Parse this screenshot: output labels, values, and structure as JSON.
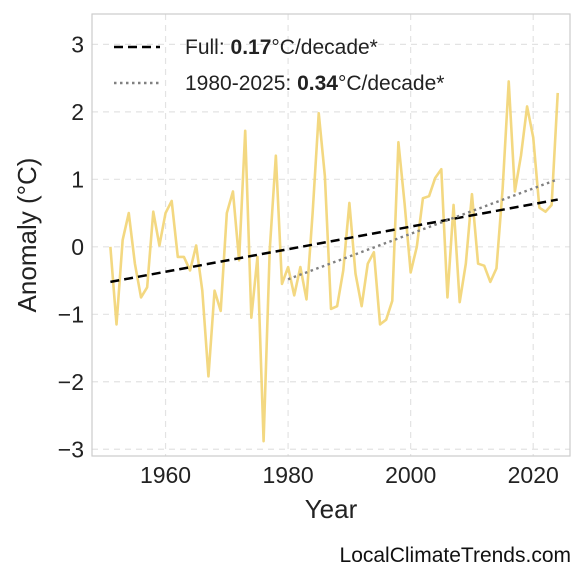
{
  "chart_data": {
    "type": "line",
    "xlabel": "Year",
    "ylabel": "Anomaly (°C)",
    "xlim": [
      1948,
      2026
    ],
    "ylim": [
      -3.1,
      3.45
    ],
    "xticks": [
      1960,
      1980,
      2000,
      2020
    ],
    "yticks": [
      -3,
      -2,
      -1,
      0,
      1,
      2,
      3
    ],
    "ytick_labels": [
      "−3",
      "−2",
      "−1",
      "0",
      "1",
      "2",
      "3"
    ],
    "grid": true,
    "legend_position": "top-left",
    "series": [
      {
        "kind": "anomaly",
        "color": "#f2d67a",
        "x": [
          1951,
          1952,
          1953,
          1954,
          1955,
          1956,
          1957,
          1958,
          1959,
          1960,
          1961,
          1962,
          1963,
          1964,
          1965,
          1966,
          1967,
          1968,
          1969,
          1970,
          1971,
          1972,
          1973,
          1974,
          1975,
          1976,
          1977,
          1978,
          1979,
          1980,
          1981,
          1982,
          1983,
          1984,
          1985,
          1986,
          1987,
          1988,
          1989,
          1990,
          1991,
          1992,
          1993,
          1994,
          1995,
          1996,
          1997,
          1998,
          1999,
          2000,
          2001,
          2002,
          2003,
          2004,
          2005,
          2006,
          2007,
          2008,
          2009,
          2010,
          2011,
          2012,
          2013,
          2014,
          2015,
          2016,
          2017,
          2018,
          2019,
          2020,
          2021,
          2022,
          2023,
          2024
        ],
        "values": [
          0.0,
          -1.15,
          0.1,
          0.5,
          -0.25,
          -0.75,
          -0.6,
          0.52,
          0.02,
          0.5,
          0.68,
          -0.15,
          -0.15,
          -0.35,
          0.02,
          -0.65,
          -1.92,
          -0.65,
          -0.95,
          0.5,
          0.82,
          -0.2,
          1.72,
          -1.05,
          -0.15,
          -2.88,
          -0.05,
          1.35,
          -0.55,
          -0.3,
          -0.72,
          -0.3,
          -0.78,
          0.5,
          1.98,
          1.05,
          -0.92,
          -0.88,
          -0.35,
          0.65,
          -0.4,
          -0.88,
          -0.25,
          -0.08,
          -1.15,
          -1.08,
          -0.8,
          1.55,
          0.65,
          -0.38,
          0.0,
          0.72,
          0.75,
          1.02,
          1.15,
          -0.75,
          0.62,
          -0.82,
          -0.25,
          0.78,
          -0.25,
          -0.28,
          -0.52,
          -0.32,
          0.85,
          2.45,
          0.82,
          1.35,
          2.08,
          1.62,
          0.58,
          0.52,
          0.62,
          2.28
        ]
      },
      {
        "kind": "trend-full",
        "name": "Full",
        "color": "#000000",
        "x": [
          1951,
          2024
        ],
        "values": [
          -0.52,
          0.7
        ]
      },
      {
        "kind": "trend-recent",
        "name": "1980-2025",
        "color": "#808080",
        "x": [
          1980,
          2024
        ],
        "values": [
          -0.48,
          1.0
        ]
      }
    ],
    "legend": [
      {
        "prefix": "Full: ",
        "value": "0.17",
        "suffix": "°C/decade*",
        "style": "dashed",
        "color": "#000000"
      },
      {
        "prefix": "1980-2025: ",
        "value": "0.34",
        "suffix": "°C/decade*",
        "style": "dotted",
        "color": "#808080"
      }
    ]
  },
  "watermark": "LocalClimateTrends.com"
}
